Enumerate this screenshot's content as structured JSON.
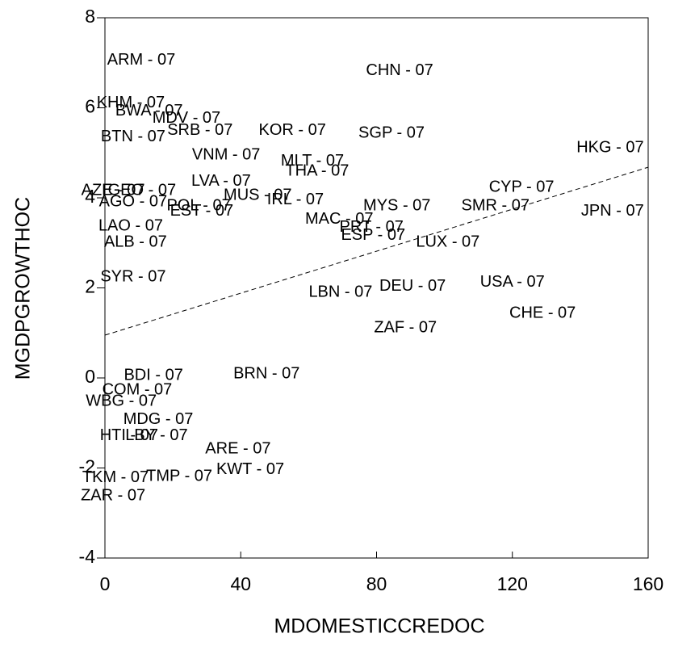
{
  "chart_data": {
    "type": "scatter",
    "xlabel": "MDOMESTICCREDOC",
    "ylabel": "MGDPGROWTHOC",
    "xlim": [
      0,
      160
    ],
    "xticks": [
      0,
      40,
      80,
      120,
      160
    ],
    "ylim": [
      -4,
      8
    ],
    "yticks": [
      -4,
      -2,
      0,
      2,
      4,
      6,
      8
    ],
    "color": "#000000",
    "labels": [
      "ARM - 07",
      "CHN - 07",
      "KHM - 07",
      "BWA - 07",
      "MDV - 07",
      "SRB - 07",
      "KOR - 07",
      "SGP - 07",
      "BTN - 07",
      "HKG - 07",
      "VNM - 07",
      "MLT - 07",
      "THA - 07",
      "LVA - 07",
      "CYP - 07",
      "GEO - 07",
      "AZE - 07",
      "MUS - 07",
      "IRL - 07",
      "AGO - 07",
      "MYS - 07",
      "SMR - 07",
      "JPN - 07",
      "POL - 07",
      "EST - 07",
      "LAO - 07",
      "MAC - 07",
      "PRT - 07",
      "ESP - 07",
      "LUX - 07",
      "ALB - 07",
      "USA - 07",
      "CHE - 07",
      "ZAF - 07",
      "DEU - 07",
      "LBN - 07",
      "SYR - 07",
      "BRN - 07",
      "ARE - 07",
      "KWT - 07",
      "TMP - 07",
      "TKM - 07",
      "ZAR - 07",
      "HTI - 07",
      "LBY - 07",
      "MDG - 07",
      "COM - 07",
      "WBG - 07",
      "BDI - 07"
    ],
    "x": [
      10.7,
      86.8,
      7.6,
      13,
      24,
      28,
      55.2,
      84.4,
      8.3,
      148.8,
      35.7,
      61.1,
      62.5,
      34.2,
      122.7,
      10.9,
      2.4,
      45,
      56.1,
      8.3,
      86,
      115,
      149.5,
      27.6,
      28.5,
      7.6,
      69,
      78.5,
      79,
      101,
      9,
      120,
      128.9,
      88.5,
      90.6,
      69.4,
      8.3,
      47.6,
      39.2,
      42.8,
      21.9,
      3.1,
      2.4,
      7.1,
      15.2,
      15.7,
      9.5,
      4.8,
      14.3
    ],
    "values": [
      7.05,
      6.82,
      6.1,
      5.92,
      5.76,
      5.49,
      5.49,
      5.43,
      5.35,
      5.11,
      4.95,
      4.81,
      4.59,
      4.36,
      4.23,
      4.16,
      4.16,
      4.05,
      3.95,
      3.91,
      3.82,
      3.82,
      3.7,
      3.82,
      3.7,
      3.37,
      3.52,
      3.34,
      3.16,
      3.01,
      3.01,
      2.12,
      1.43,
      1.11,
      2.03,
      1.9,
      2.24,
      0.09,
      -1.58,
      -2.04,
      -2.19,
      -2.22,
      -2.62,
      -1.29,
      -1.29,
      -0.93,
      -0.27,
      -0.52,
      0.05
    ],
    "fit": {
      "x": [
        0,
        160
      ],
      "values": [
        0.95,
        4.68
      ]
    }
  }
}
